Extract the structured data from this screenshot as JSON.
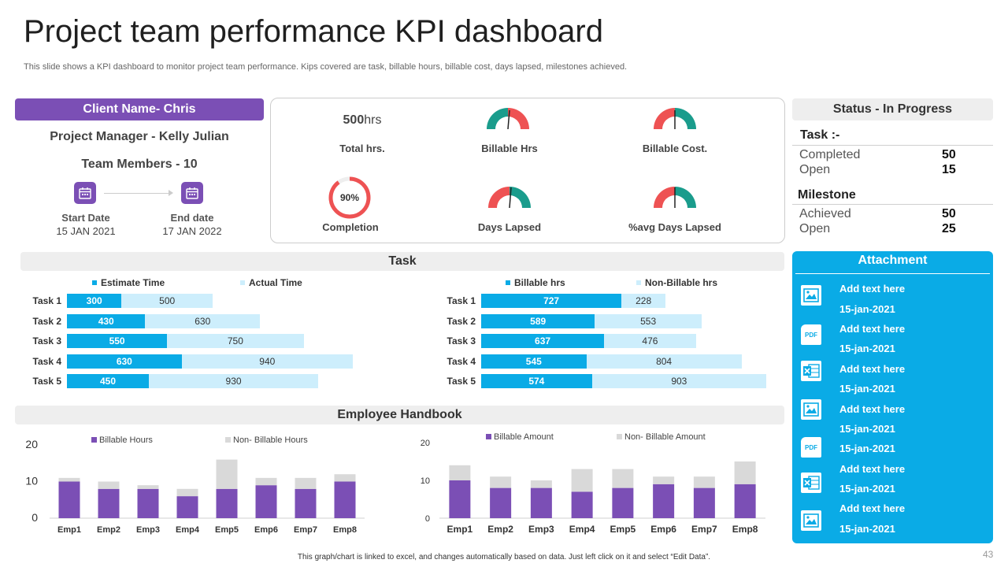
{
  "header": {
    "title": "Project team performance KPI dashboard",
    "subtitle": "This slide shows a KPI dashboard to monitor project team performance. Kips covered are task, billable hours, billable cost, days lapsed, milestones achieved."
  },
  "client": {
    "name": "Client Name- Chris",
    "project_manager": "Project Manager -  Kelly Julian",
    "team_members": "Team Members - 10",
    "start_label": "Start Date",
    "start_value": "15 JAN 2021",
    "end_label": "End date",
    "end_value": "17 JAN 2022"
  },
  "kpis": {
    "total_hours_value": "500",
    "total_hours_unit": "hrs",
    "total_hours_label": "Total hrs.",
    "billable_hrs_label": "Billable Hrs",
    "billable_cost_label": "Billable Cost.",
    "completion_value": "90%",
    "completion_fraction": 0.9,
    "completion_label": "Completion",
    "days_lapsed_label": "Days Lapsed",
    "avg_days_lapsed_label": "%avg Days Lapsed"
  },
  "status": {
    "header": "Status - In Progress",
    "task_title": "Task :-",
    "task_completed_label": "Completed",
    "task_completed_value": "50",
    "task_open_label": "Open",
    "task_open_value": "15",
    "milestone_title": "Milestone",
    "milestone_achieved_label": "Achieved",
    "milestone_achieved_value": "50",
    "milestone_open_label": "Open",
    "milestone_open_value": "25"
  },
  "sections": {
    "task": "Task",
    "handbook": "Employee Handbook"
  },
  "attachment": {
    "header": "Attachment",
    "items": [
      {
        "icon": "image-icon",
        "text": "Add text here",
        "date": "15-jan-2021"
      },
      {
        "icon": "pdf-icon",
        "text": "Add text here",
        "date": "15-jan-2021"
      },
      {
        "icon": "excel-icon",
        "text": "Add text here",
        "date": "15-jan-2021"
      },
      {
        "icon": "image-icon",
        "text": "Add text here",
        "date": "15-jan-2021"
      },
      {
        "icon": "pdf-icon",
        "text": "",
        "date": "15-jan-2021"
      },
      {
        "icon": "excel-icon",
        "text": "Add text here",
        "date": "15-jan-2021"
      },
      {
        "icon": "image-icon",
        "text": "Add text here",
        "date": "15-jan-2021"
      }
    ]
  },
  "pdf_icon_text": "PDF",
  "footer": "This graph/chart is linked to excel, and changes automatically based on data. Just left click on it and select “Edit Data”.",
  "page_number": "43",
  "colors": {
    "purple": "#7b4fb5",
    "blue": "#0aabe6",
    "light_blue": "#cdeefc",
    "teal": "#1a9c8c",
    "red": "#ee5253",
    "grey_bar": "#d9d9d9"
  },
  "chart_data": [
    {
      "type": "bar",
      "orientation": "horizontal",
      "stacked": true,
      "categories": [
        "Task 1",
        "Task 2",
        "Task 3",
        "Task 4",
        "Task 5"
      ],
      "series": [
        {
          "name": "Estimate Time",
          "values": [
            300,
            430,
            550,
            630,
            450
          ]
        },
        {
          "name": "Actual Time",
          "values": [
            500,
            630,
            750,
            940,
            930
          ]
        }
      ],
      "legend": "top"
    },
    {
      "type": "bar",
      "orientation": "horizontal",
      "stacked": true,
      "categories": [
        "Task 1",
        "Task 2",
        "Task 3",
        "Task 4",
        "Task 5"
      ],
      "series": [
        {
          "name": "Billable hrs",
          "values": [
            727,
            589,
            637,
            545,
            574
          ]
        },
        {
          "name": "Non-Billable hrs",
          "values": [
            228,
            553,
            476,
            804,
            903
          ]
        }
      ],
      "legend": "top"
    },
    {
      "type": "bar",
      "stacked": true,
      "categories": [
        "Emp1",
        "Emp2",
        "Emp3",
        "Emp4",
        "Emp5",
        "Emp6",
        "Emp7",
        "Emp8"
      ],
      "series": [
        {
          "name": "Billable Hours",
          "values": [
            10,
            8,
            8,
            6,
            8,
            9,
            8,
            10
          ]
        },
        {
          "name": "Non- Billable Hours",
          "values": [
            1,
            2,
            1,
            2,
            8,
            2,
            3,
            2
          ]
        }
      ],
      "ylim": [
        0,
        20
      ],
      "yticks": [
        "0",
        "10",
        "20"
      ],
      "legend": "top"
    },
    {
      "type": "bar",
      "stacked": true,
      "categories": [
        "Emp1",
        "Emp2",
        "Emp3",
        "Emp4",
        "Emp5",
        "Emp6",
        "Emp7",
        "Emp8"
      ],
      "series": [
        {
          "name": "Billable Amount",
          "values": [
            10,
            8,
            8,
            7,
            8,
            9,
            8,
            9
          ]
        },
        {
          "name": "Non- Billable Amount",
          "values": [
            4,
            3,
            2,
            6,
            5,
            2,
            3,
            6
          ]
        }
      ],
      "ylim": [
        0,
        20
      ],
      "yticks": [
        "0",
        "10",
        "20"
      ],
      "legend": "top"
    }
  ]
}
